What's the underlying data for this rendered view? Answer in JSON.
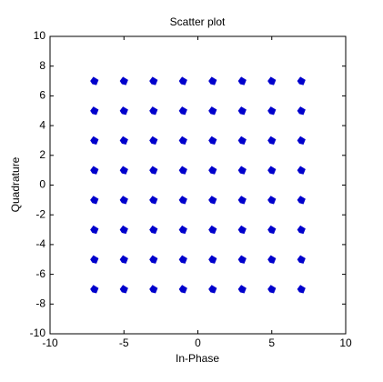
{
  "chart_data": {
    "type": "scatter",
    "title": "Scatter plot",
    "xlabel": "In-Phase",
    "ylabel": "Quadrature",
    "color": "#0000cc",
    "x": [
      -7,
      -7,
      -7,
      -7,
      -7,
      -7,
      -7,
      -7,
      -5,
      -5,
      -5,
      -5,
      -5,
      -5,
      -5,
      -5,
      -3,
      -3,
      -3,
      -3,
      -3,
      -3,
      -3,
      -3,
      -1,
      -1,
      -1,
      -1,
      -1,
      -1,
      -1,
      -1,
      1,
      1,
      1,
      1,
      1,
      1,
      1,
      1,
      3,
      3,
      3,
      3,
      3,
      3,
      3,
      3,
      5,
      5,
      5,
      5,
      5,
      5,
      5,
      5,
      7,
      7,
      7,
      7,
      7,
      7,
      7,
      7
    ],
    "values": [
      7,
      5,
      3,
      1,
      -1,
      -3,
      -5,
      -7,
      7,
      5,
      3,
      1,
      -1,
      -3,
      -5,
      -7,
      7,
      5,
      3,
      1,
      -1,
      -3,
      -5,
      -7,
      7,
      5,
      3,
      1,
      -1,
      -3,
      -5,
      -7,
      7,
      5,
      3,
      1,
      -1,
      -3,
      -5,
      -7,
      7,
      5,
      3,
      1,
      -1,
      -3,
      -5,
      -7,
      7,
      5,
      3,
      1,
      -1,
      -3,
      -5,
      -7,
      7,
      5,
      3,
      1,
      -1,
      -3,
      -5,
      -7
    ],
    "xlim": [
      -10,
      10
    ],
    "xticks": [
      -10,
      -5,
      0,
      5,
      10
    ],
    "ylim": [
      -10,
      10
    ],
    "yticks": [
      -10,
      -8,
      -6,
      -4,
      -2,
      0,
      2,
      4,
      6,
      8,
      10
    ],
    "grid": false
  }
}
